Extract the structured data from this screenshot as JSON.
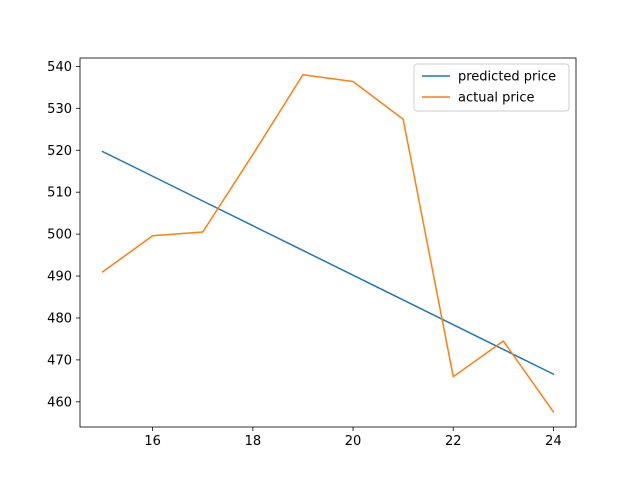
{
  "chart_data": {
    "type": "line",
    "title": "",
    "xlabel": "",
    "ylabel": "",
    "xlim": [
      14.55,
      24.45
    ],
    "ylim": [
      454,
      542
    ],
    "x_ticks": [
      16,
      18,
      20,
      22,
      24
    ],
    "y_ticks": [
      460,
      470,
      480,
      490,
      500,
      510,
      520,
      530,
      540
    ],
    "grid": false,
    "legend": "top-right",
    "series": [
      {
        "name": "predicted price",
        "color": "#1f77b4",
        "x": [
          15,
          16,
          17,
          18,
          19,
          20,
          21,
          22,
          23,
          24
        ],
        "y": [
          519.7,
          513.8,
          507.9,
          502.0,
          496.1,
          490.2,
          484.3,
          478.4,
          472.5,
          466.6
        ]
      },
      {
        "name": "actual price",
        "color": "#ff7f0e",
        "x": [
          15,
          16,
          17,
          18,
          19,
          20,
          21,
          22,
          23,
          24
        ],
        "y": [
          491.0,
          499.6,
          500.5,
          519.0,
          538.0,
          536.4,
          527.4,
          466.0,
          474.5,
          457.6
        ]
      }
    ]
  }
}
